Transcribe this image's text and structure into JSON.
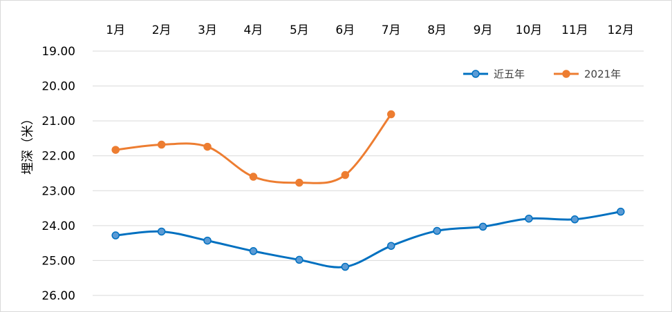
{
  "chart_data": {
    "type": "line",
    "ylabel": "埋深（米）",
    "categories": [
      "1月",
      "2月",
      "3月",
      "4月",
      "5月",
      "6月",
      "7月",
      "8月",
      "9月",
      "10月",
      "11月",
      "12月"
    ],
    "ylim": [
      19.0,
      26.0
    ],
    "y_inverted": true,
    "y_ticks": [
      "19.00",
      "20.00",
      "21.00",
      "22.00",
      "23.00",
      "24.00",
      "25.00",
      "26.00"
    ],
    "x_axis_position": "top",
    "grid": true,
    "legend_position": "top-right",
    "series": [
      {
        "name": "近五年",
        "color": "#0070C0",
        "values": [
          24.28,
          24.17,
          24.43,
          24.73,
          24.98,
          25.18,
          24.58,
          24.15,
          24.03,
          23.8,
          23.82,
          23.6
        ]
      },
      {
        "name": "2021年",
        "color": "#ED7D31",
        "values": [
          21.83,
          21.68,
          21.74,
          22.6,
          22.77,
          22.55,
          20.81,
          null,
          null,
          null,
          null,
          null
        ]
      }
    ]
  }
}
